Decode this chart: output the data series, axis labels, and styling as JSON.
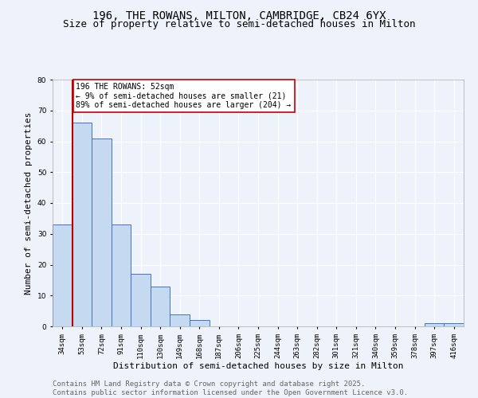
{
  "title_line1": "196, THE ROWANS, MILTON, CAMBRIDGE, CB24 6YX",
  "title_line2": "Size of property relative to semi-detached houses in Milton",
  "xlabel": "Distribution of semi-detached houses by size in Milton",
  "ylabel": "Number of semi-detached properties",
  "categories": [
    "34sqm",
    "53sqm",
    "72sqm",
    "91sqm",
    "110sqm",
    "130sqm",
    "149sqm",
    "168sqm",
    "187sqm",
    "206sqm",
    "225sqm",
    "244sqm",
    "263sqm",
    "282sqm",
    "301sqm",
    "321sqm",
    "340sqm",
    "359sqm",
    "378sqm",
    "397sqm",
    "416sqm"
  ],
  "values": [
    33,
    66,
    61,
    33,
    17,
    13,
    4,
    2,
    0,
    0,
    0,
    0,
    0,
    0,
    0,
    0,
    0,
    0,
    0,
    1,
    1
  ],
  "bar_color": "#c5d9f1",
  "bar_edge_color": "#4472c4",
  "ylim": [
    0,
    80
  ],
  "yticks": [
    0,
    10,
    20,
    30,
    40,
    50,
    60,
    70,
    80
  ],
  "vline_color": "#c00000",
  "annotation_title": "196 THE ROWANS: 52sqm",
  "annotation_line1": "← 9% of semi-detached houses are smaller (21)",
  "annotation_line2": "89% of semi-detached houses are larger (204) →",
  "footer_line1": "Contains HM Land Registry data © Crown copyright and database right 2025.",
  "footer_line2": "Contains public sector information licensed under the Open Government Licence v3.0.",
  "bg_color": "#eef2fa",
  "plot_bg_color": "#eef2fa",
  "grid_color": "#ffffff",
  "title_fontsize": 10,
  "subtitle_fontsize": 9,
  "axis_label_fontsize": 8,
  "tick_fontsize": 6.5,
  "footer_fontsize": 6.5
}
